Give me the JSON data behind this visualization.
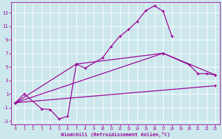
{
  "xlabel": "Windchill (Refroidissement éolien,°C)",
  "bg_color": "#cde8ec",
  "line_color": "#990099",
  "xlim": [
    -0.5,
    23.5
  ],
  "ylim": [
    -3.5,
    14.5
  ],
  "xticks": [
    0,
    1,
    2,
    3,
    4,
    5,
    6,
    7,
    8,
    9,
    10,
    11,
    12,
    13,
    14,
    15,
    16,
    17,
    18,
    19,
    20,
    21,
    22,
    23
  ],
  "yticks": [
    -3,
    -1,
    1,
    3,
    5,
    7,
    9,
    11,
    13
  ],
  "line1_x": [
    0,
    1,
    3,
    4,
    5,
    6,
    7,
    8,
    10,
    11,
    12,
    13,
    14,
    15,
    16,
    17,
    18
  ],
  "line1_y": [
    -0.3,
    1.0,
    -1.2,
    -1.3,
    -2.7,
    -2.3,
    5.4,
    4.8,
    6.3,
    8.0,
    9.5,
    10.5,
    11.7,
    13.3,
    14.0,
    13.2,
    9.5
  ],
  "line2_x": [
    0,
    7,
    17,
    20,
    21,
    22,
    23
  ],
  "line2_y": [
    -0.3,
    5.4,
    7.0,
    5.3,
    4.0,
    4.0,
    3.8
  ],
  "line3_x": [
    0,
    23
  ],
  "line3_y": [
    -0.3,
    2.2
  ],
  "line4_x": [
    0,
    17,
    23
  ],
  "line4_y": [
    -0.3,
    7.0,
    3.8
  ]
}
